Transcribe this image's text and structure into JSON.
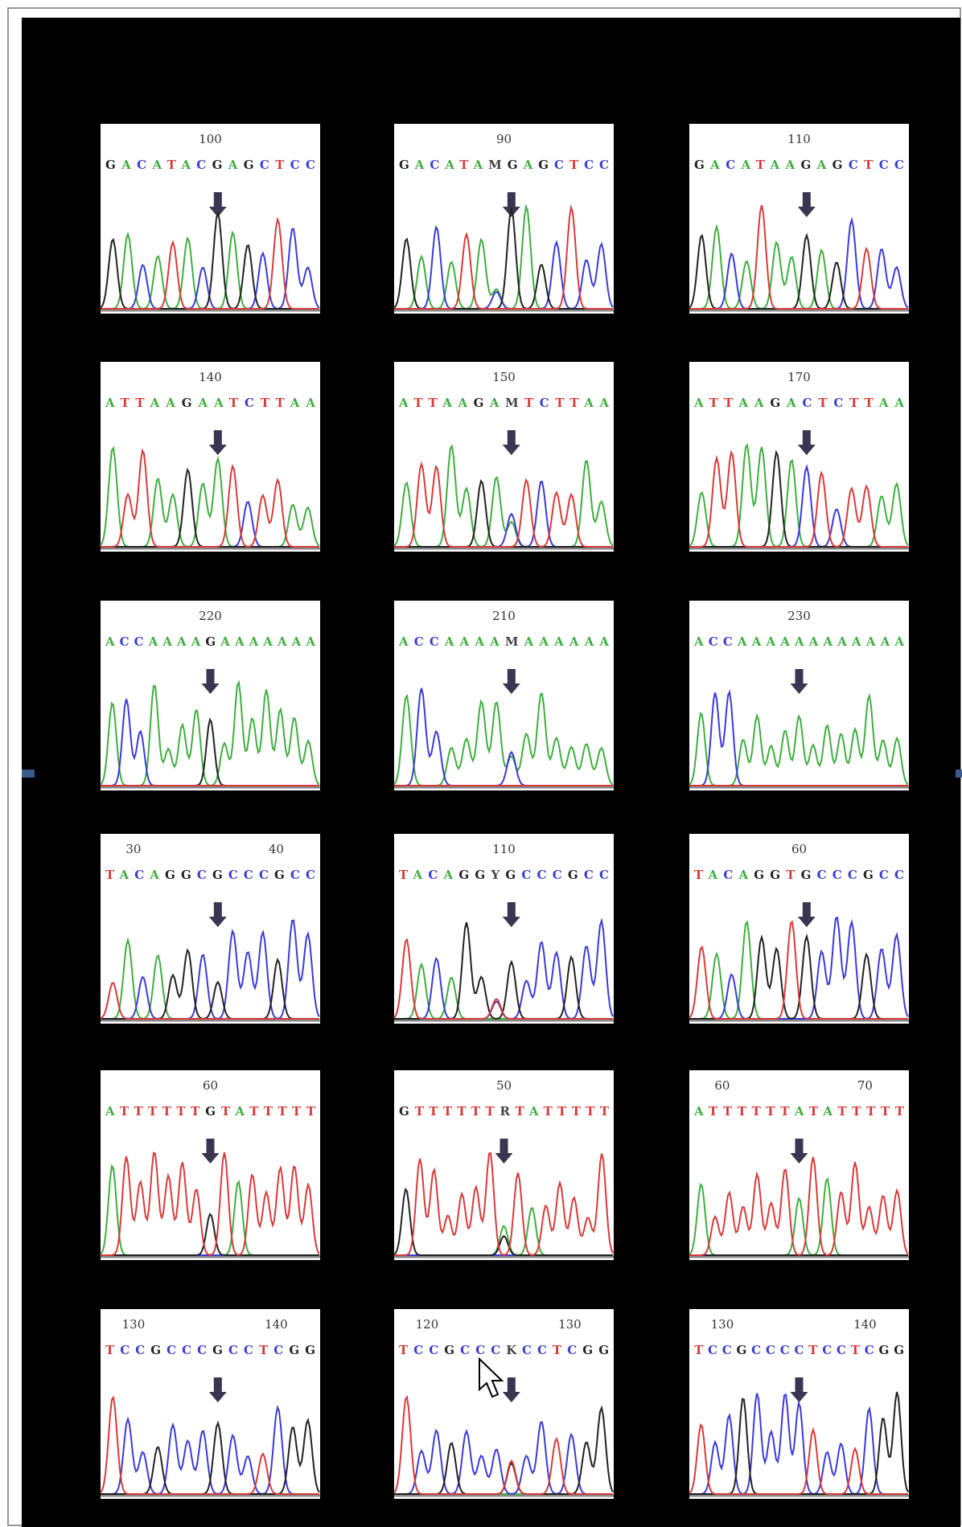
{
  "figure": {
    "panels": [
      [
        {
          "positions": [
            "100"
          ],
          "sequence": "GACATACGAGCTCC"
        },
        {
          "positions": [
            "90"
          ],
          "sequence": "GACATAMGAGCTCC"
        },
        {
          "positions": [
            "110"
          ],
          "sequence": "GACATAAGAGCTCC"
        }
      ],
      [
        {
          "positions": [
            "140"
          ],
          "sequence": "ATTAAGAATCTTAA"
        },
        {
          "positions": [
            "150"
          ],
          "sequence": "ATTAAGAMTCTTAA"
        },
        {
          "positions": [
            "170"
          ],
          "sequence": "ATTAAGACTCTTAA"
        }
      ],
      [
        {
          "positions": [
            "220"
          ],
          "sequence": "ACCAAAAGAAAAAAA"
        },
        {
          "positions": [
            "210"
          ],
          "sequence": "ACCAAAAMAAAAAA"
        },
        {
          "positions": [
            "230"
          ],
          "sequence": "ACCAAAAAAAAAAAA"
        }
      ],
      [
        {
          "positions": [
            "30",
            "40"
          ],
          "sequence": "TACAGGCGCCCGCC"
        },
        {
          "positions": [
            "110"
          ],
          "sequence": "TACAGGYGCCCGCC"
        },
        {
          "positions": [
            "60"
          ],
          "sequence": "TACAGGTGCCCGCC"
        }
      ],
      [
        {
          "positions": [
            "60"
          ],
          "sequence": "ATTTTTTGTATTTTT"
        },
        {
          "positions": [
            "50"
          ],
          "sequence": "GTTTTTTRTATTTTT"
        },
        {
          "positions": [
            "60",
            "70"
          ],
          "sequence": "ATTTTTTATATTTTT"
        }
      ],
      [
        {
          "positions": [
            "130",
            "140"
          ],
          "sequence": "TCCGCCCGCCTCGG"
        },
        {
          "positions": [
            "120",
            "130"
          ],
          "sequence": "TCCGCCCKCCTCGG"
        },
        {
          "positions": [
            "130",
            "140"
          ],
          "sequence": "TCCGCCCCTCCTCGG"
        }
      ]
    ]
  }
}
